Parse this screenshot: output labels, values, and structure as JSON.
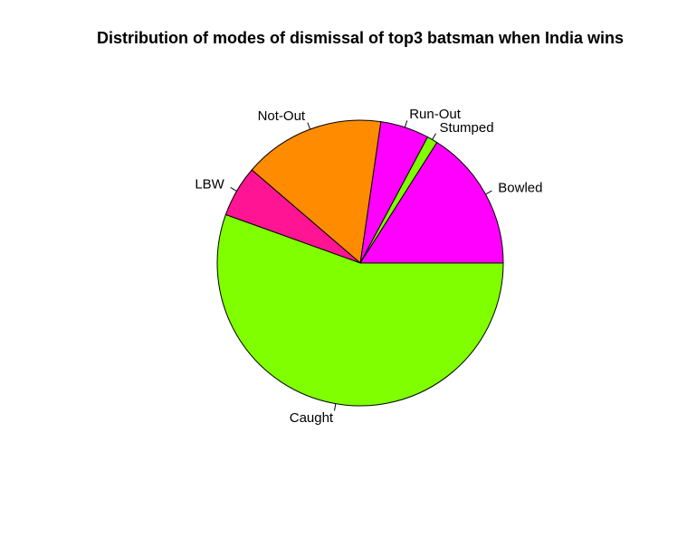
{
  "chart_data": {
    "type": "pie",
    "title": "Distribution of modes of dismissal of top3 batsman when India wins",
    "slices": [
      {
        "label": "Bowled",
        "value": 16.0,
        "color": "#FF00FF"
      },
      {
        "label": "Stumped",
        "value": 1.2,
        "color": "#7FFF00"
      },
      {
        "label": "Run-Out",
        "value": 5.5,
        "color": "#FF00FF"
      },
      {
        "label": "Not-Out",
        "value": 16.0,
        "color": "#FF8C00"
      },
      {
        "label": "LBW",
        "value": 5.8,
        "color": "#FF1493"
      },
      {
        "label": "Caught",
        "value": 55.5,
        "color": "#7FFF00"
      }
    ],
    "direction": "counterclockwise",
    "start_angle_deg": 0
  }
}
